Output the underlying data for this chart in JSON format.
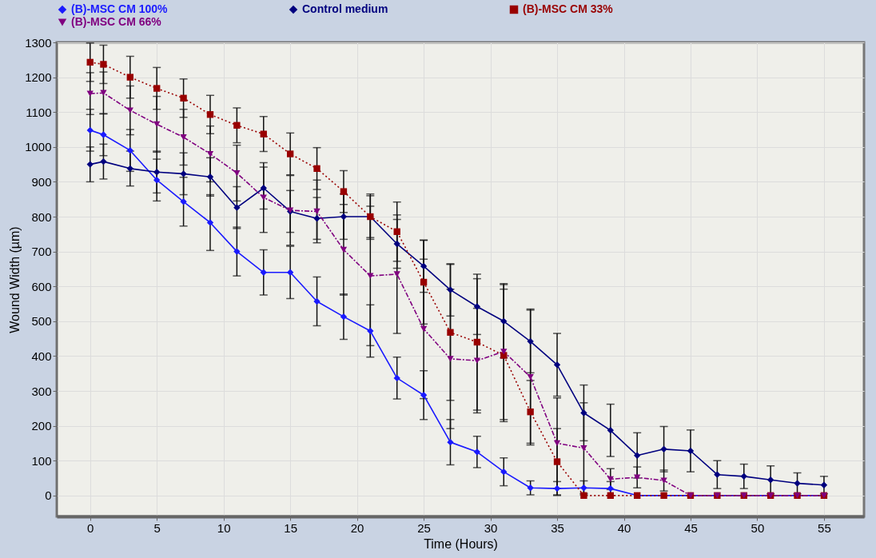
{
  "chart_data": {
    "type": "line",
    "xlabel": "Time (Hours)",
    "ylabel": "Wound Width (µm)",
    "x": [
      0,
      1,
      3,
      5,
      7,
      9,
      11,
      13,
      15,
      17,
      19,
      21,
      23,
      25,
      27,
      29,
      31,
      33,
      35,
      37,
      39,
      41,
      43,
      45,
      47,
      49,
      51,
      53,
      55
    ],
    "xlim": [
      -2.5,
      58
    ],
    "xticks": [
      0,
      5,
      10,
      15,
      20,
      25,
      30,
      35,
      40,
      45,
      50,
      55
    ],
    "ylim": [
      -60,
      1300
    ],
    "yticks": [
      0,
      100,
      200,
      300,
      400,
      500,
      600,
      700,
      800,
      900,
      1000,
      1100,
      1200,
      1300
    ],
    "grid": true,
    "legend": "top",
    "series": [
      {
        "name": "(B)-MSC CM 100%",
        "color": "#1a1aff",
        "marker": "diamond",
        "line_style": "solid",
        "values": [
          1048,
          1035,
          990,
          905,
          843,
          783,
          700,
          640,
          640,
          557,
          513,
          472,
          337,
          288,
          153,
          125,
          68,
          22,
          20,
          22,
          20,
          0,
          0,
          0,
          0,
          0,
          0,
          0,
          0
        ],
        "errors": [
          60,
          60,
          60,
          60,
          70,
          80,
          70,
          65,
          75,
          70,
          65,
          75,
          60,
          70,
          65,
          45,
          40,
          20,
          20,
          20,
          20,
          null,
          null,
          null,
          null,
          null,
          null,
          null,
          null
        ]
      },
      {
        "name": "Control medium",
        "color": "#00007f",
        "marker": "diamond",
        "line_style": "solid",
        "values": [
          950,
          958,
          938,
          928,
          923,
          914,
          826,
          882,
          815,
          795,
          800,
          800,
          722,
          658,
          590,
          542,
          500,
          442,
          375,
          237,
          187,
          115,
          133,
          128,
          60,
          55,
          45,
          35,
          30
        ],
        "errors": [
          50,
          50,
          50,
          60,
          60,
          55,
          60,
          60,
          60,
          60,
          65,
          65,
          70,
          75,
          75,
          80,
          105,
          90,
          90,
          80,
          75,
          65,
          65,
          60,
          40,
          35,
          40,
          30,
          25
        ]
      },
      {
        "name": "(B)-MSC CM  33%",
        "color": "#990000",
        "marker": "square",
        "line_style": "dotted",
        "values": [
          1243,
          1237,
          1200,
          1168,
          1140,
          1093,
          1062,
          1037,
          980,
          938,
          872,
          800,
          757,
          612,
          468,
          440,
          402,
          240,
          97,
          0,
          0,
          0,
          0,
          0,
          0,
          0,
          0,
          0,
          0
        ],
        "errors": [
          55,
          55,
          60,
          60,
          55,
          55,
          50,
          50,
          60,
          60,
          60,
          60,
          85,
          120,
          195,
          195,
          190,
          90,
          95,
          null,
          null,
          null,
          null,
          null,
          null,
          null,
          null,
          null,
          null
        ]
      },
      {
        "name": "(B)-MSC CM 66%",
        "color": "#800080",
        "marker": "triangle",
        "line_style": "dashed",
        "values": [
          1153,
          1155,
          1105,
          1065,
          1028,
          980,
          925,
          855,
          818,
          815,
          705,
          630,
          635,
          478,
          392,
          387,
          413,
          340,
          150,
          136,
          47,
          52,
          43,
          0,
          0,
          0,
          0,
          0,
          0
        ],
        "errors": [
          60,
          60,
          70,
          80,
          80,
          80,
          80,
          100,
          100,
          90,
          130,
          200,
          170,
          200,
          200,
          150,
          195,
          195,
          130,
          130,
          30,
          30,
          30,
          null,
          null,
          null,
          null,
          null,
          null
        ]
      }
    ]
  }
}
